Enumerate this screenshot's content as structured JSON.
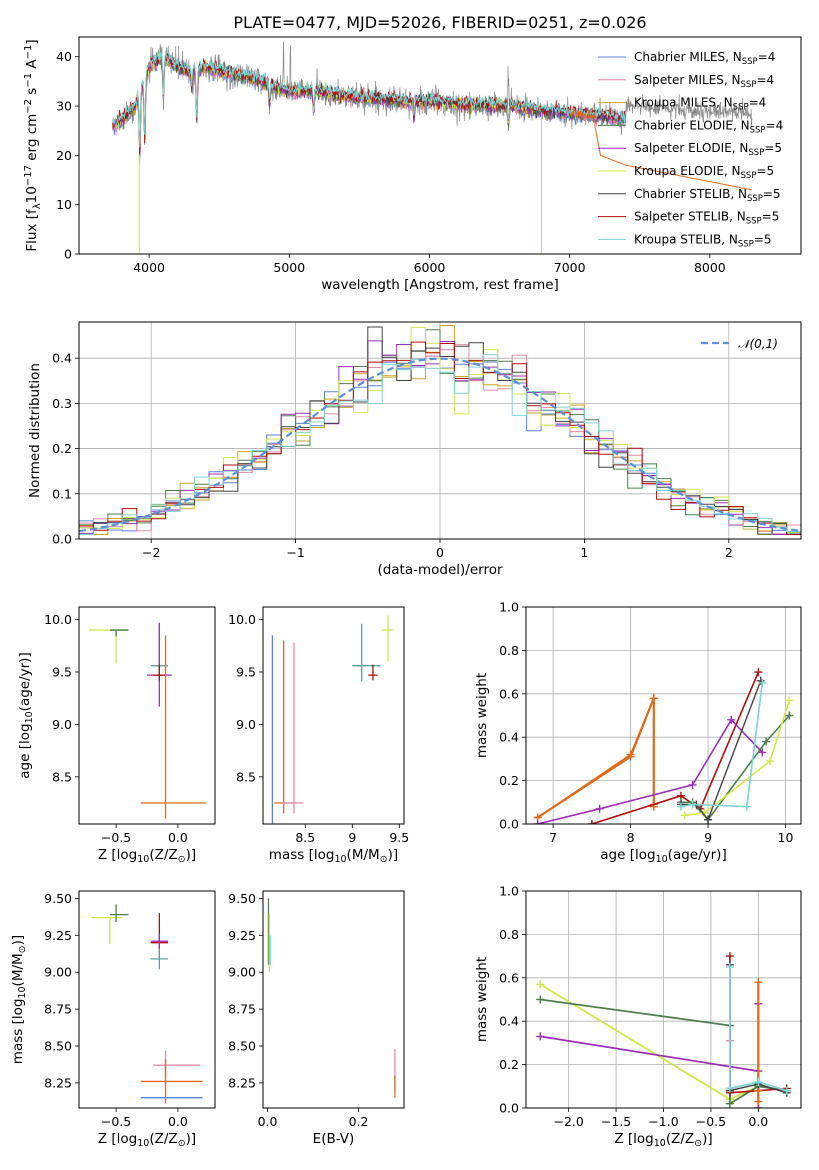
{
  "figure": {
    "title": "PLATE=0477, MJD=52026, FIBERID=0251, z=0.026"
  },
  "colors": {
    "Chabrier MILES": "#5b84d6",
    "Salpeter MILES": "#e38aac",
    "Kroupa MILES": "#c9a52a",
    "Chabrier ELODIE": "#4c7f4c",
    "Salpeter ELODIE": "#9b2fb5",
    "Kroupa ELODIE": "#d2e64e",
    "Chabrier STELIB": "#444444",
    "Salpeter STELIB": "#b00e0e",
    "Kroupa STELIB": "#7fd3d3",
    "data": "#888888",
    "orange": "#de6a1e",
    "teal": "#5aa0a0",
    "olive": "#5e8566",
    "normal": "#5b8fd6",
    "grid": "#b0b0b0"
  },
  "chart_data": [
    {
      "id": "spectrum",
      "type": "line",
      "title": "PLATE=0477, MJD=52026, FIBERID=0251, z=0.026",
      "xlabel": "wavelength [Angstrom, rest frame]",
      "ylabel": "Flux [f_λ10^-17 erg cm^-2 s^-1 A^-1]",
      "xlim": [
        3500,
        8650
      ],
      "ylim": [
        0,
        44
      ],
      "xticks": [
        4000,
        5000,
        6000,
        7000,
        8000
      ],
      "yticks": [
        0,
        10,
        20,
        30,
        40
      ],
      "grid": false,
      "legend_position": "top-right",
      "legend": [
        "Chabrier MILES, N_SSP=4",
        "Salpeter MILES, N_SSP=4",
        "Kroupa MILES, N_SSP=4",
        "Chabrier ELODIE, N_SSP=4",
        "Salpeter ELODIE, N_SSP=5",
        "Kroupa ELODIE, N_SSP=5",
        "Chabrier STELIB, N_SSP=5",
        "Salpeter STELIB, N_SSP=5",
        "Kroupa STELIB, N_SSP=5"
      ],
      "continuum": [
        [
          3740,
          26
        ],
        [
          3800,
          27
        ],
        [
          3900,
          30
        ],
        [
          3950,
          34
        ],
        [
          4000,
          38
        ],
        [
          4100,
          40
        ],
        [
          4200,
          38
        ],
        [
          4300,
          37
        ],
        [
          4400,
          38
        ],
        [
          4500,
          37
        ],
        [
          4700,
          36
        ],
        [
          4900,
          34
        ],
        [
          5000,
          33
        ],
        [
          5200,
          33
        ],
        [
          5400,
          32
        ],
        [
          5600,
          31.5
        ],
        [
          5800,
          31
        ],
        [
          6000,
          31
        ],
        [
          6200,
          30.5
        ],
        [
          6400,
          30
        ],
        [
          6600,
          30
        ],
        [
          6800,
          29
        ],
        [
          7000,
          28.5
        ],
        [
          7200,
          28
        ],
        [
          7400,
          27.5
        ]
      ],
      "absorption_lines": [
        3934,
        3969,
        4102,
        4304,
        4340,
        4861,
        5175,
        5890,
        6563
      ],
      "data_extended_to": 8300,
      "orange_model_drop": [
        [
          7180,
          26
        ],
        [
          7220,
          20
        ],
        [
          7400,
          18
        ],
        [
          8300,
          13
        ]
      ]
    },
    {
      "id": "residuals",
      "type": "line",
      "xlabel": "(data-model)/error",
      "ylabel": "Normed distribution",
      "xlim": [
        -2.5,
        2.5
      ],
      "ylim": [
        0,
        0.48
      ],
      "xticks": [
        -2,
        -1,
        0,
        1,
        2
      ],
      "xticklabels": [
        "−2",
        "−1",
        "0",
        "1",
        "2"
      ],
      "yticks": [
        0.0,
        0.1,
        0.2,
        0.3,
        0.4
      ],
      "grid": true,
      "legend_position": "top-right",
      "legend": [
        "𝒩(0,1)"
      ],
      "bin_width": 0.1
    },
    {
      "id": "age_vs_Z",
      "type": "scatter",
      "xlabel": "Z [log10(Z/Z⊙)]",
      "ylabel": "age  [log10(age/yr)]",
      "xlim": [
        -0.8,
        0.3
      ],
      "ylim": [
        8.05,
        10.12
      ],
      "xticks": [
        -0.5,
        0.0
      ],
      "xticklabels": [
        "−0.5",
        "0.0"
      ],
      "yticks": [
        8.5,
        9.0,
        9.5,
        10.0
      ],
      "grid": false,
      "errorbars": [
        {
          "x": -0.5,
          "y": 9.9,
          "xerr": [
            0.22,
            0.1
          ],
          "yerr": [
            0.32,
            0.0
          ],
          "color": "#d2e64e"
        },
        {
          "x": -0.5,
          "y": 9.9,
          "xerr": [
            0.05,
            0.1
          ],
          "yerr": [
            0.06,
            0.0
          ],
          "color": "#4c7f4c"
        },
        {
          "x": -0.15,
          "y": 9.56,
          "xerr": [
            0.07,
            0.07
          ],
          "yerr": [
            0.15,
            0.4
          ],
          "color": "#5aa0a0"
        },
        {
          "x": -0.15,
          "y": 9.47,
          "xerr": [
            0.1,
            0.1
          ],
          "yerr": [
            0.3,
            0.5
          ],
          "color": "#9b2fb5"
        },
        {
          "x": -0.15,
          "y": 9.47,
          "xerr": [
            0.05,
            0.05
          ],
          "yerr": [
            0.05,
            0.1
          ],
          "color": "#b00e0e"
        },
        {
          "x": -0.1,
          "y": 8.25,
          "xerr": [
            0.2,
            0.33
          ],
          "yerr": [
            0.15,
            1.6
          ],
          "color": "#de6a1e"
        }
      ]
    },
    {
      "id": "age_vs_mass",
      "type": "scatter",
      "xlabel": "mass [log10(M/M⊙)]",
      "xlim": [
        8.05,
        9.55
      ],
      "ylim": [
        8.05,
        10.12
      ],
      "xticks": [
        8.5,
        9.0,
        9.5
      ],
      "yticks": [
        8.5,
        9.0,
        9.5,
        10.0
      ],
      "grid": false,
      "errorbars": [
        {
          "x": 8.15,
          "y": 9.0,
          "yerr": [
            0.95,
            0.85
          ],
          "color": "#5b84d6"
        },
        {
          "x": 8.27,
          "y": 8.25,
          "xerr": [
            0.1,
            0.1
          ],
          "yerr": [
            0.1,
            1.55
          ],
          "color": "#de6a1e"
        },
        {
          "x": 8.38,
          "y": 8.25,
          "xerr": [
            0.12,
            0.1
          ],
          "yerr": [
            0.1,
            1.53
          ],
          "color": "#e38aac"
        },
        {
          "x": 9.1,
          "y": 9.56,
          "xerr": [
            0.1,
            0.2
          ],
          "yerr": [
            0.15,
            0.4
          ],
          "color": "#5aa0a0"
        },
        {
          "x": 9.22,
          "y": 9.47,
          "xerr": [
            0.05,
            0.05
          ],
          "yerr": [
            0.05,
            0.1
          ],
          "color": "#b00e0e"
        },
        {
          "x": 9.38,
          "y": 9.9,
          "xerr": [
            0.07,
            0.05
          ],
          "yerr": [
            0.3,
            0.14
          ],
          "color": "#d2e64e"
        }
      ]
    },
    {
      "id": "massweight_vs_age",
      "type": "line",
      "xlabel": "age  [log10(age/yr)]",
      "ylabel": "mass weight",
      "xlim": [
        6.65,
        10.2
      ],
      "ylim": [
        0,
        1.0
      ],
      "xticks": [
        7,
        8,
        9,
        10
      ],
      "yticks": [
        0.0,
        0.2,
        0.4,
        0.6,
        0.8,
        1.0
      ],
      "grid": true,
      "series": [
        {
          "color": "#de6a1e",
          "width": 2.2,
          "x": [
            6.8,
            8.0,
            8.3,
            8.3,
            8.3
          ],
          "y": [
            0.03,
            0.31,
            0.58,
            0.09,
            0.08
          ]
        },
        {
          "color": "#de6a1e",
          "width": 1.6,
          "x": [
            8.3,
            8.0,
            6.8
          ],
          "y": [
            0.58,
            0.32,
            0.03
          ]
        },
        {
          "color": "#b00e0e",
          "width": 1.6,
          "x": [
            7.5,
            8.65,
            8.9,
            9.65
          ],
          "y": [
            0.0,
            0.13,
            0.07,
            0.7
          ]
        },
        {
          "color": "#9b2fb5",
          "width": 1.6,
          "x": [
            6.8,
            7.6,
            8.8,
            9.3,
            9.7
          ],
          "y": [
            0.0,
            0.07,
            0.18,
            0.48,
            0.33
          ]
        },
        {
          "color": "#4c7f4c",
          "width": 1.6,
          "x": [
            8.65,
            8.8,
            9.0,
            9.75,
            10.05
          ],
          "y": [
            0.1,
            0.1,
            0.02,
            0.38,
            0.5
          ]
        },
        {
          "color": "#d2e64e",
          "width": 1.6,
          "x": [
            8.7,
            8.95,
            9.8,
            10.05
          ],
          "y": [
            0.04,
            0.05,
            0.29,
            0.57
          ]
        },
        {
          "color": "#444444",
          "width": 1.4,
          "x": [
            8.65,
            8.85,
            9.0,
            9.68
          ],
          "y": [
            0.09,
            0.09,
            0.02,
            0.66
          ]
        },
        {
          "color": "#7fd3d3",
          "width": 1.6,
          "x": [
            8.65,
            8.8,
            9.5,
            9.7
          ],
          "y": [
            0.08,
            0.09,
            0.08,
            0.65
          ]
        }
      ]
    },
    {
      "id": "mass_vs_Z",
      "type": "scatter",
      "xlabel": "Z [log10(Z/Z⊙)]",
      "ylabel": "mass [log10(M/M⊙)]",
      "xlim": [
        -0.8,
        0.3
      ],
      "ylim": [
        8.08,
        9.55
      ],
      "xticks": [
        -0.5,
        0.0
      ],
      "xticklabels": [
        "−0.5",
        "0.0"
      ],
      "yticks": [
        8.25,
        8.5,
        8.75,
        9.0,
        9.25,
        9.5
      ],
      "grid": false,
      "errorbars": [
        {
          "x": -0.55,
          "y": 9.37,
          "xerr": [
            0.15,
            0.1
          ],
          "yerr": [
            0.18,
            0.0
          ],
          "color": "#d2e64e"
        },
        {
          "x": -0.5,
          "y": 9.39,
          "xerr": [
            0.05,
            0.1
          ],
          "yerr": [
            0.05,
            0.07
          ],
          "color": "#4c7f4c"
        },
        {
          "x": -0.15,
          "y": 9.2,
          "xerr": [
            0.07,
            0.07
          ],
          "yerr": [
            0.1,
            0.2
          ],
          "color": "#b00e0e"
        },
        {
          "x": -0.15,
          "y": 9.21,
          "xerr": [
            0.07,
            0.07
          ],
          "yerr": [
            0.05,
            0.05
          ],
          "color": "#9b2fb5"
        },
        {
          "x": -0.15,
          "y": 9.09,
          "xerr": [
            0.07,
            0.07
          ],
          "yerr": [
            0.07,
            0.07
          ],
          "color": "#5aa0a0"
        },
        {
          "x": -0.1,
          "y": 8.37,
          "xerr": [
            0.1,
            0.28
          ],
          "yerr": [
            0.08,
            0.1
          ],
          "color": "#e38aac"
        },
        {
          "x": -0.1,
          "y": 8.26,
          "xerr": [
            0.2,
            0.3
          ],
          "yerr": [
            0.15,
            0.15
          ],
          "color": "#de6a1e"
        },
        {
          "x": -0.1,
          "y": 8.15,
          "xerr": [
            0.2,
            0.3
          ],
          "yerr": [
            0.0,
            0.0
          ],
          "color": "#5b84d6"
        }
      ]
    },
    {
      "id": "mass_vs_EBV",
      "type": "scatter",
      "xlabel": "E(B-V)",
      "xlim": [
        -0.01,
        0.3
      ],
      "ylim": [
        8.08,
        9.55
      ],
      "xticks": [
        0.0,
        0.2
      ],
      "xticklabels": [
        "0.0",
        "0.2"
      ],
      "yticks": [
        8.25,
        8.5,
        8.75,
        9.0,
        9.25,
        9.5
      ],
      "grid": false,
      "errorbars": [
        {
          "x": 0.002,
          "y": 9.3,
          "yerr": [
            0.25,
            0.2
          ],
          "color": "#4c7f4c"
        },
        {
          "x": 0.004,
          "y": 9.2,
          "yerr": [
            0.2,
            0.2
          ],
          "color": "#d2e64e"
        },
        {
          "x": 0.006,
          "y": 9.15,
          "yerr": [
            0.1,
            0.1
          ],
          "color": "#7fd3d3"
        },
        {
          "x": 0.28,
          "y": 8.25,
          "yerr": [
            0.05,
            0.23
          ],
          "color": "#e38aac"
        },
        {
          "x": 0.28,
          "y": 8.2,
          "yerr": [
            0.05,
            0.1
          ],
          "color": "#de6a1e"
        }
      ]
    },
    {
      "id": "massweight_vs_Z",
      "type": "line",
      "xlabel": "Z [log10(Z/Z⊙)]",
      "ylabel": "mass weight",
      "xlim": [
        -2.45,
        0.45
      ],
      "ylim": [
        0,
        1.0
      ],
      "xticks": [
        -2.0,
        -1.5,
        -1.0,
        -0.5,
        0.0
      ],
      "xticklabels": [
        "−2.0",
        "−1.5",
        "−1.0",
        "−0.5",
        "0.0"
      ],
      "yticks": [
        0.0,
        0.2,
        0.4,
        0.6,
        0.8,
        1.0
      ],
      "grid": true,
      "series": [
        {
          "color": "#d2e64e",
          "width": 1.8,
          "x": [
            -2.3,
            -0.3,
            0.0,
            0.3
          ],
          "y": [
            0.57,
            0.04,
            0.1,
            0.08
          ]
        },
        {
          "color": "#4c7f4c",
          "width": 1.8,
          "x": [
            -2.3,
            -0.3,
            -0.3,
            0.0,
            0.3
          ],
          "y": [
            0.5,
            0.38,
            0.02,
            0.1,
            0.08
          ]
        },
        {
          "color": "#9b2fb5",
          "width": 1.8,
          "x": [
            -2.3,
            0.0,
            0.0,
            0.0
          ],
          "y": [
            0.33,
            0.17,
            0.48,
            0.0
          ]
        },
        {
          "color": "#b00e0e",
          "width": 1.6,
          "x": [
            -0.3,
            -0.3,
            -0.3,
            0.3
          ],
          "y": [
            0.7,
            0.08,
            0.07,
            0.09
          ]
        },
        {
          "color": "#de6a1e",
          "width": 2.2,
          "x": [
            0.0,
            0.0,
            0.0
          ],
          "y": [
            0.58,
            0.03,
            0.08
          ]
        },
        {
          "color": "#e38aac",
          "width": 1.4,
          "x": [
            -0.3,
            -0.3
          ],
          "y": [
            0.31,
            0.09
          ]
        },
        {
          "color": "#444444",
          "width": 1.4,
          "x": [
            -0.3,
            -0.3,
            0.0,
            0.3
          ],
          "y": [
            0.66,
            0.08,
            0.11,
            0.07
          ]
        },
        {
          "color": "#7fd3d3",
          "width": 1.8,
          "x": [
            -0.3,
            -0.3,
            0.0,
            0.3
          ],
          "y": [
            0.65,
            0.09,
            0.12,
            0.08
          ]
        }
      ]
    }
  ]
}
